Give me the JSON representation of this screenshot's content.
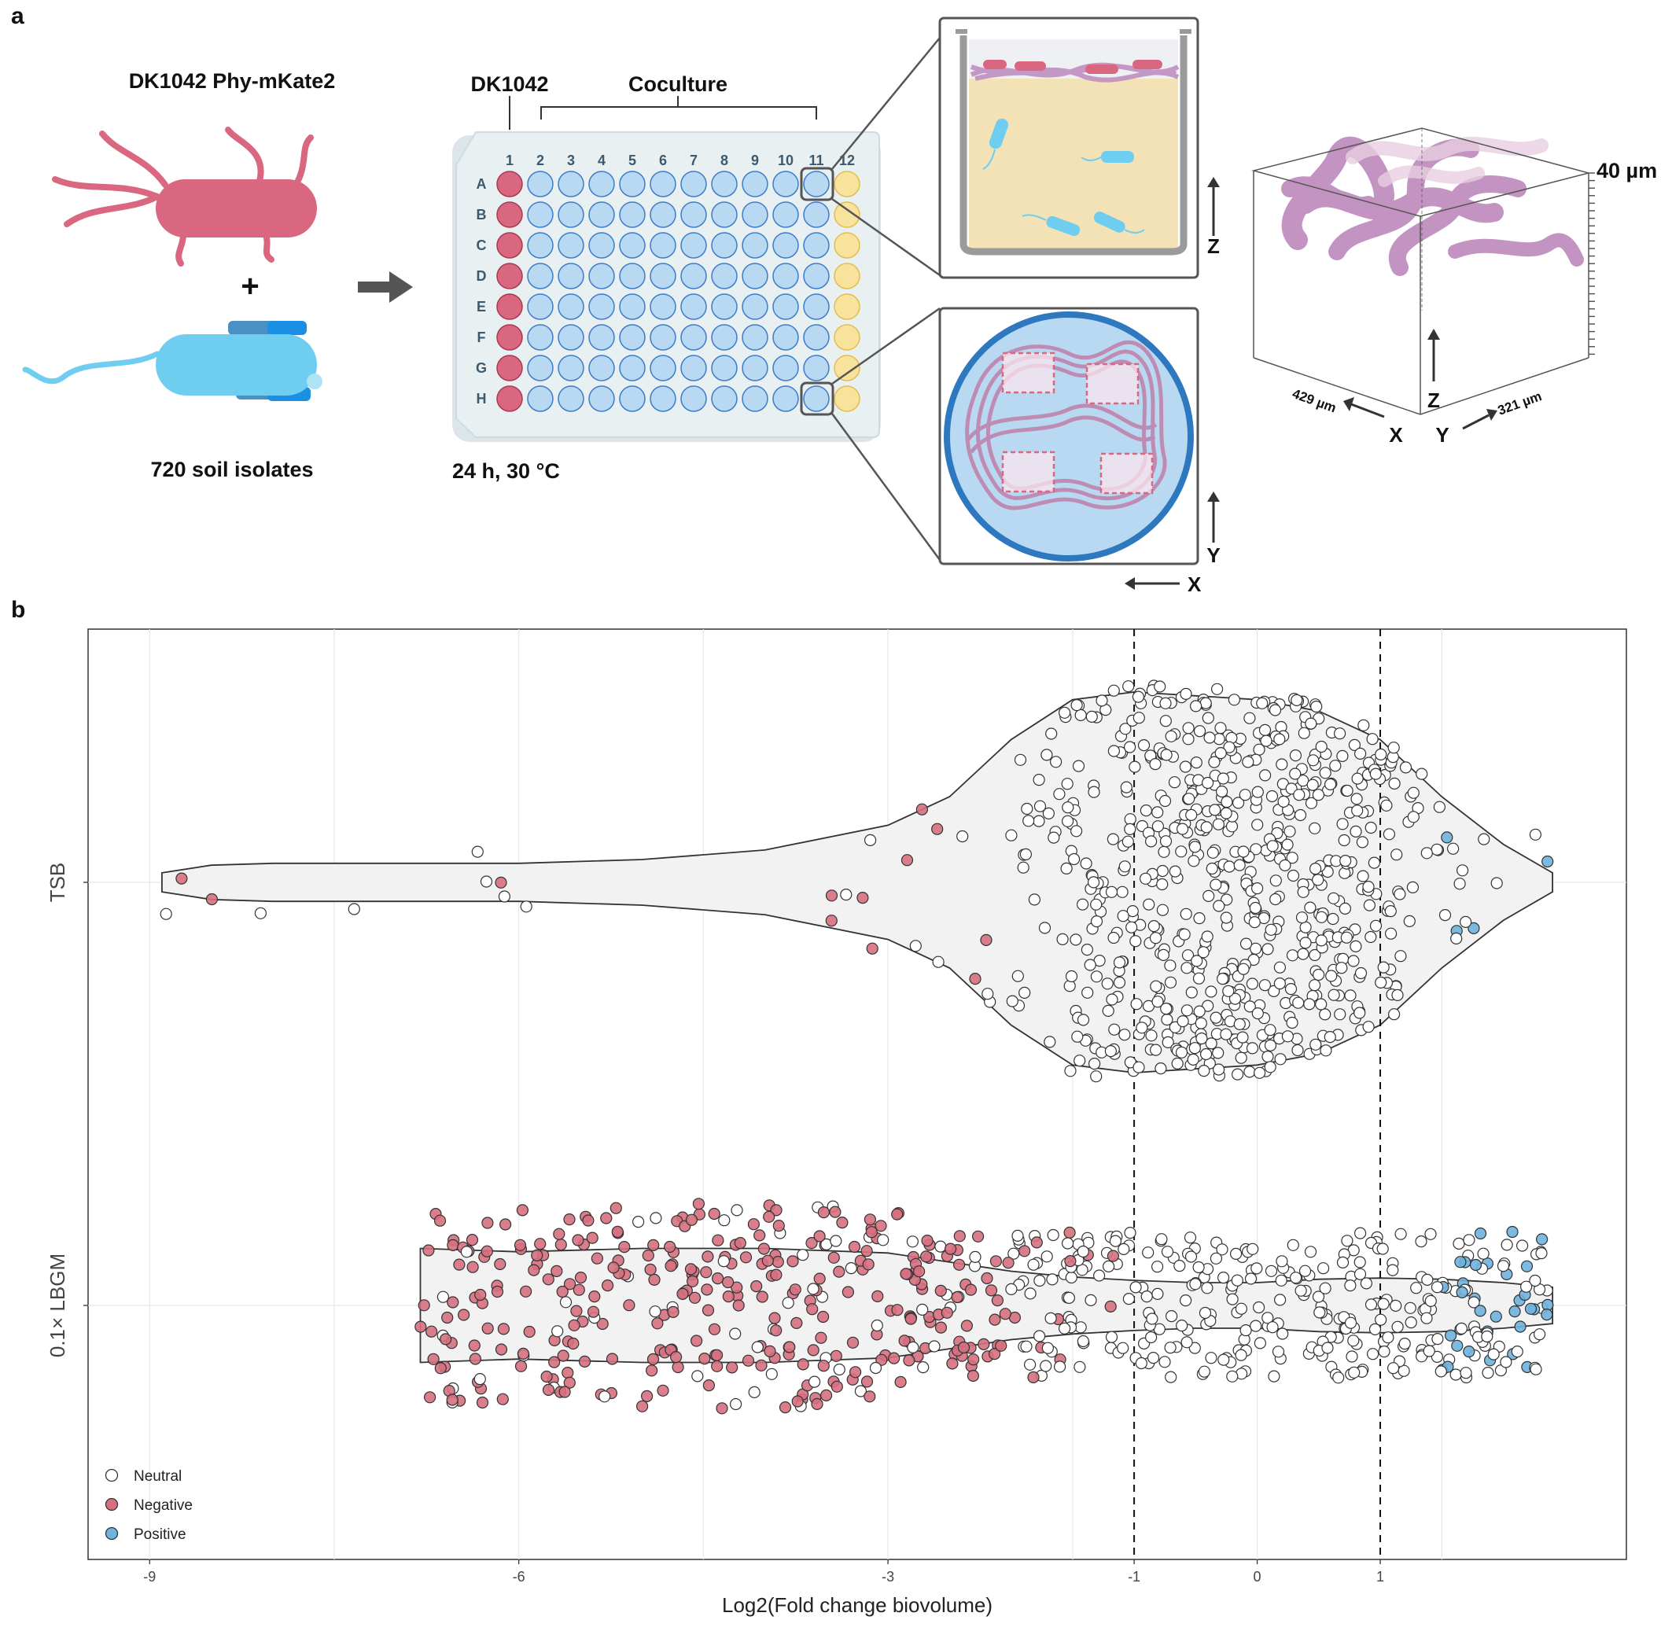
{
  "panel_a": {
    "letter": "a",
    "strain_label": "DK1042 Phy-mKate2",
    "plus": "+",
    "isolates_label": "720 soil isolates",
    "plate": {
      "dk1042_label": "DK1042",
      "coculture_label": "Coculture",
      "columns": [
        "1",
        "2",
        "3",
        "4",
        "5",
        "6",
        "7",
        "8",
        "9",
        "10",
        "11",
        "12"
      ],
      "rows": [
        "A",
        "B",
        "C",
        "D",
        "E",
        "F",
        "G",
        "H"
      ],
      "condition_label": "24 h, 30 °C"
    },
    "inset_side_axis": "Z",
    "inset_top_axis_y": "Y",
    "inset_top_axis_x": "X",
    "cube": {
      "height_label": "40 µm",
      "x_size_label": "429 µm",
      "y_size_label": "321 µm",
      "axis_z": "Z",
      "axis_x": "X",
      "axis_y": "Y"
    },
    "colors": {
      "dk1042": "#d9677f",
      "isolate": "#6fcdf0",
      "well": "#b9d9f3",
      "blank_well": "#f8e39c",
      "biofilm": "#c08fbf"
    }
  },
  "panel_b": {
    "letter": "b",
    "chart_data": {
      "type": "violin-jitter",
      "xlabel": "Log2(Fold change biovolume)",
      "x_ticks": [
        "-9",
        "-6",
        "-3",
        "-1",
        "0",
        "1"
      ],
      "x_range": [
        -9.5,
        3.0
      ],
      "categories": [
        "TSB",
        "0.1× LBGM"
      ],
      "threshold_lines": [
        -1,
        1
      ],
      "grid": true,
      "legend": {
        "position": "bottom-left",
        "items": [
          {
            "label": "Neutral",
            "color": "#ffffff"
          },
          {
            "label": "Negative",
            "color": "#d6707f"
          },
          {
            "label": "Positive",
            "color": "#6fb3de"
          }
        ]
      },
      "series": [
        {
          "category": "TSB",
          "points_shown": 720,
          "violin_half_width": [
            [
              -8.9,
              0.05
            ],
            [
              -8.5,
              0.09
            ],
            [
              -8.0,
              0.1
            ],
            [
              -7.0,
              0.1
            ],
            [
              -6.0,
              0.1
            ],
            [
              -5.0,
              0.12
            ],
            [
              -4.0,
              0.17
            ],
            [
              -3.0,
              0.3
            ],
            [
              -2.5,
              0.45
            ],
            [
              -2.0,
              0.75
            ],
            [
              -1.5,
              0.96
            ],
            [
              -1.0,
              1.0
            ],
            [
              -0.5,
              0.98
            ],
            [
              0.0,
              0.96
            ],
            [
              0.5,
              0.9
            ],
            [
              1.0,
              0.75
            ],
            [
              1.5,
              0.45
            ],
            [
              2.0,
              0.2
            ],
            [
              2.4,
              0.05
            ]
          ]
        },
        {
          "category": "0.1× LBGM",
          "points_shown": 720,
          "violin_half_width": [
            [
              -6.8,
              0.5
            ],
            [
              -6.0,
              0.47
            ],
            [
              -5.0,
              0.5
            ],
            [
              -4.0,
              0.5
            ],
            [
              -3.0,
              0.46
            ],
            [
              -2.5,
              0.38
            ],
            [
              -2.0,
              0.3
            ],
            [
              -1.5,
              0.25
            ],
            [
              -1.0,
              0.22
            ],
            [
              -0.5,
              0.2
            ],
            [
              0.0,
              0.2
            ],
            [
              0.5,
              0.23
            ],
            [
              1.0,
              0.24
            ],
            [
              1.5,
              0.23
            ],
            [
              2.0,
              0.2
            ],
            [
              2.4,
              0.16
            ]
          ]
        }
      ]
    }
  }
}
